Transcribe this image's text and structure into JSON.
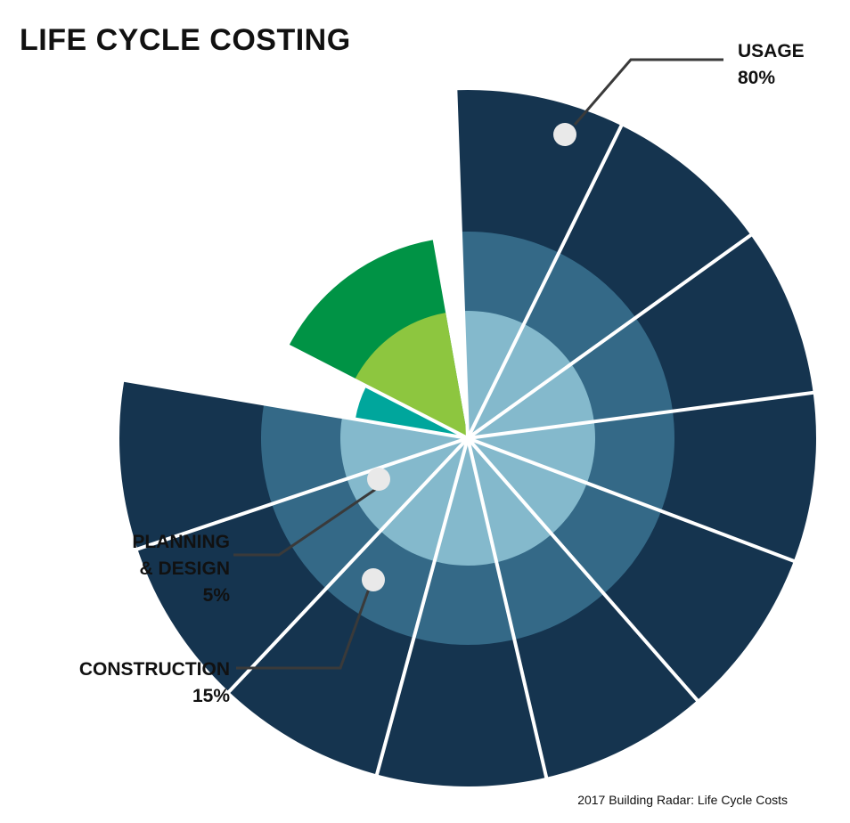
{
  "title": "LIFE CYCLE COSTING",
  "source": "2017 Building Radar: Life Cycle Costs",
  "chart_data": {
    "type": "pie",
    "style": "radial segmented pie with three concentric rings",
    "title": "LIFE CYCLE COSTING",
    "slices": [
      {
        "label": "USAGE",
        "line2": "",
        "pct_text": "80%",
        "value": 80,
        "color": "#15344f",
        "color_mid": "#346987",
        "color_inner": "#84b9cc"
      },
      {
        "label": "PLANNING",
        "line2": "& DESIGN",
        "pct_text": "5%",
        "value": 5,
        "color": "#00a69c",
        "color_mid": "",
        "color_inner": ""
      },
      {
        "label": "CONSTRUCTION",
        "line2": "",
        "pct_text": "15%",
        "value": 15,
        "color": "#009345",
        "color_mid": "#8dc63f",
        "color_inner": ""
      }
    ],
    "marker_color": "#e9e9e9",
    "leader_color": "#3a3a3a"
  }
}
